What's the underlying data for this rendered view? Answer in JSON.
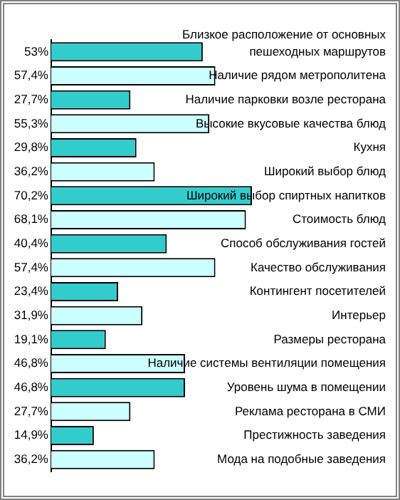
{
  "chart_data": {
    "type": "bar",
    "orientation": "horizontal",
    "categories": [
      "Близкое расположение от основных пешеходных маршрутов",
      "Наличие рядом метрополитена",
      "Наличие парковки возле ресторана",
      "Высокие вкусовые качества блюд",
      "Кухня",
      "Широкий выбор блюд",
      "Широкий выбор спиртных напитков",
      "Стоимость блюд",
      "Способ обслуживания гостей",
      "Качество обслуживания",
      "Контингент посетителей",
      "Интерьер",
      "Размеры ресторана",
      "Наличие системы вентиляции помещения",
      "Уровень шума в помещении",
      "Реклама ресторана в СМИ",
      "Престижность заведения",
      "Мода на подобные заведения"
    ],
    "values": [
      53,
      57.4,
      27.7,
      55.3,
      29.8,
      36.2,
      70.2,
      68.1,
      40.4,
      57.4,
      23.4,
      31.9,
      19.1,
      46.8,
      46.8,
      27.7,
      14.9,
      36.2
    ],
    "value_labels": [
      "53%",
      "57,4%",
      "27,7%",
      "55,3%",
      "29,8%",
      "36,2%",
      "70,2%",
      "68,1%",
      "40,4%",
      "57,4%",
      "23,4%",
      "31,9%",
      "19,1%",
      "46,8%",
      "46,8%",
      "27,7%",
      "14,9%",
      "36,2%"
    ],
    "colors": [
      "#33cccc",
      "#ccffff",
      "#33cccc",
      "#ccffff",
      "#33cccc",
      "#ccffff",
      "#33cccc",
      "#ccffff",
      "#33cccc",
      "#ccffff",
      "#33cccc",
      "#ccffff",
      "#33cccc",
      "#ccffff",
      "#33cccc",
      "#ccffff",
      "#33cccc",
      "#ccffff"
    ],
    "grid": false,
    "legend": false
  }
}
